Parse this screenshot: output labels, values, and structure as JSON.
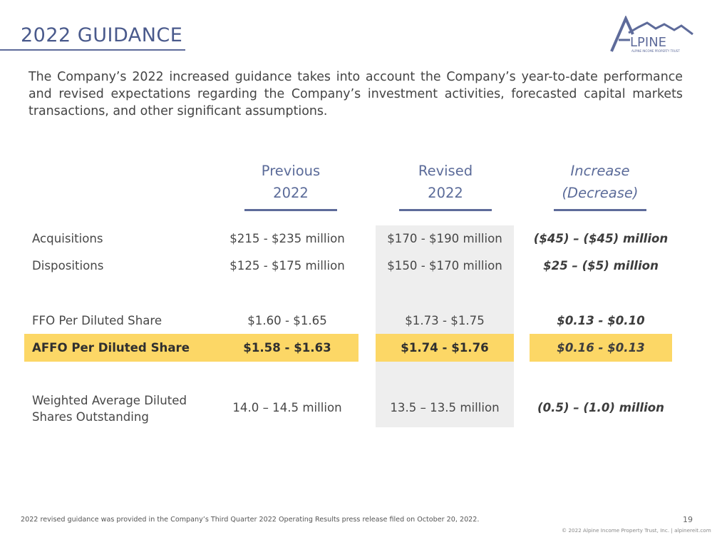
{
  "header": {
    "title": "2022 GUIDANCE"
  },
  "logo": {
    "text": "LPINE",
    "tagline": "ALPINE INCOME PROPERTY TRUST"
  },
  "intro": "The Company’s 2022 increased guidance takes into account the Company’s year-to-date performance and revised expectations regarding the Company’s investment activities, forecasted capital markets transactions, and other significant assumptions.",
  "columns": {
    "previous": {
      "line1": "Previous",
      "line2": "2022"
    },
    "revised": {
      "line1": "Revised",
      "line2": "2022"
    },
    "change": {
      "line1": "Increase",
      "line2": "(Decrease)"
    }
  },
  "rows": [
    {
      "label": "Acquisitions",
      "previous": "$215 - $235 million",
      "revised": "$170 - $190 million",
      "change": "($45) – ($45) million"
    },
    {
      "label": "Dispositions",
      "previous": "$125 - $175 million",
      "revised": "$150 - $170 million",
      "change": "$25 – ($5) million"
    },
    {
      "label": "FFO Per Diluted Share",
      "previous": "$1.60 - $1.65",
      "revised": "$1.73 - $1.75",
      "change": "$0.13 - $0.10"
    },
    {
      "label": "AFFO Per Diluted Share",
      "previous": "$1.58 - $1.63",
      "revised": "$1.74 - $1.76",
      "change": "$0.16 - $0.13"
    },
    {
      "label": "Weighted Average Diluted Shares Outstanding",
      "previous": "14.0 – 14.5 million",
      "revised": "13.5 – 13.5 million",
      "change": "(0.5) – (1.0) million"
    }
  ],
  "footer": {
    "note": "2022 revised guidance was provided in the Company’s Third Quarter 2022 Operating Results press release filed on October 20, 2022.",
    "page": "19",
    "copyright": "© 2022 Alpine Income Property Trust, Inc.  |  alpinereit.com"
  },
  "colors": {
    "accent": "#5e6b9a",
    "highlight": "#fcd766",
    "shade": "#eeeeee"
  }
}
